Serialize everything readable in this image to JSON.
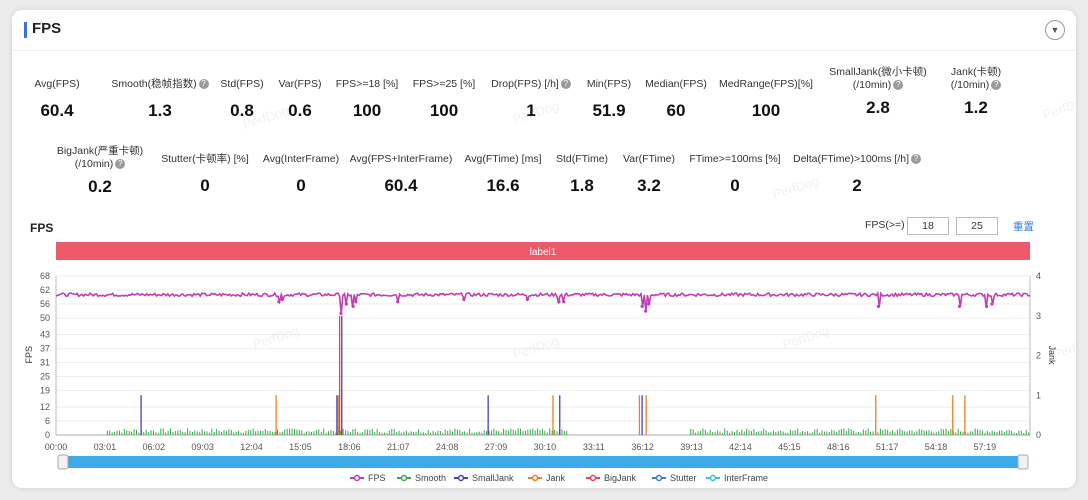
{
  "header": {
    "title": "FPS",
    "collapse_icon": "chevron-down-icon"
  },
  "metrics": [
    {
      "label": "Avg(FPS)",
      "value": "60.4",
      "help": false
    },
    {
      "label": "Smooth(稳帧指数)",
      "value": "1.3",
      "help": true
    },
    {
      "label": "Std(FPS)",
      "value": "0.8",
      "help": false
    },
    {
      "label": "Var(FPS)",
      "value": "0.6",
      "help": false
    },
    {
      "label": "FPS>=18 [%]",
      "value": "100",
      "help": false
    },
    {
      "label": "FPS>=25 [%]",
      "value": "100",
      "help": false
    },
    {
      "label": "Drop(FPS) [/h]",
      "value": "1",
      "help": true
    },
    {
      "label": "Min(FPS)",
      "value": "51.9",
      "help": false
    },
    {
      "label": "Median(FPS)",
      "value": "60",
      "help": false
    },
    {
      "label": "MedRange(FPS)[%]",
      "value": "100",
      "help": false
    },
    {
      "label": "SmallJank(微小卡顿)",
      "label2": "(/10min)",
      "value": "2.8",
      "help": true
    },
    {
      "label": "Jank(卡顿)",
      "label2": "(/10min)",
      "value": "1.2",
      "help": true
    },
    {
      "label": "BigJank(严重卡顿)",
      "label2": "(/10min)",
      "value": "0.2",
      "help": true
    },
    {
      "label": "Stutter(卡顿率) [%]",
      "value": "0",
      "help": false
    },
    {
      "label": "Avg(InterFrame)",
      "value": "0",
      "help": false
    },
    {
      "label": "Avg(FPS+InterFrame)",
      "value": "60.4",
      "help": false
    },
    {
      "label": "Avg(FTime) [ms]",
      "value": "16.6",
      "help": false
    },
    {
      "label": "Std(FTime)",
      "value": "1.8",
      "help": false
    },
    {
      "label": "Var(FTime)",
      "value": "3.2",
      "help": false
    },
    {
      "label": "FTime>=100ms [%]",
      "value": "0",
      "help": false
    },
    {
      "label": "Delta(FTime)>100ms [/h]",
      "value": "2",
      "help": true
    }
  ],
  "watermark_text": "PerfDog",
  "chart_section": {
    "title": "FPS",
    "threshold_label": "FPS(>=)",
    "threshold_1": "18",
    "threshold_2": "25",
    "reset_label": "重置"
  },
  "chart_data": {
    "type": "line",
    "label_band": "label1",
    "colors": {
      "FPS": "#c13cb5",
      "Smooth": "#3aa84a",
      "SmallJank": "#4b3fb8",
      "Jank": "#f07f22",
      "BigJank": "#e8425a",
      "Stutter": "#3d7ad8",
      "InterFrame": "#36c3cf",
      "label_band": "#ec5a6a",
      "scrollbar": "#3ea9e8"
    },
    "left_axis": {
      "label": "FPS",
      "range": [
        0,
        68
      ],
      "ticks": [
        0,
        6,
        12,
        19,
        25,
        31,
        37,
        43,
        50,
        56,
        62,
        68
      ]
    },
    "right_axis": {
      "label": "Jank",
      "range": [
        0,
        4
      ],
      "ticks": [
        0,
        1,
        2,
        3,
        4
      ]
    },
    "x_ticks": [
      "00:00",
      "03:01",
      "06:02",
      "09:03",
      "12:04",
      "15:05",
      "18:06",
      "21:07",
      "24:08",
      "27:09",
      "30:10",
      "33:11",
      "36:12",
      "39:13",
      "42:14",
      "45:15",
      "48:16",
      "51:17",
      "54:18",
      "57:19"
    ],
    "x_range_sec": [
      0,
      3606
    ],
    "fps_baseline": 60,
    "fps_dips": [
      {
        "t": 825,
        "fps": 57
      },
      {
        "t": 838,
        "fps": 58
      },
      {
        "t": 1055,
        "fps": 52
      },
      {
        "t": 1075,
        "fps": 56
      },
      {
        "t": 1100,
        "fps": 55
      },
      {
        "t": 1110,
        "fps": 57
      },
      {
        "t": 1745,
        "fps": 58
      },
      {
        "t": 1862,
        "fps": 57
      },
      {
        "t": 1880,
        "fps": 57
      },
      {
        "t": 2170,
        "fps": 55
      },
      {
        "t": 2183,
        "fps": 53
      },
      {
        "t": 2195,
        "fps": 56
      },
      {
        "t": 3045,
        "fps": 55
      },
      {
        "t": 3345,
        "fps": 55
      },
      {
        "t": 3445,
        "fps": 55
      },
      {
        "t": 3465,
        "fps": 56
      },
      {
        "t": 1265,
        "fps": 57
      },
      {
        "t": 1510,
        "fps": 58
      }
    ],
    "small_jank_spikes": [
      {
        "t": 315,
        "v": 1
      },
      {
        "t": 1040,
        "v": 1
      },
      {
        "t": 1058,
        "v": 3
      },
      {
        "t": 1600,
        "v": 1
      },
      {
        "t": 1865,
        "v": 1
      },
      {
        "t": 2170,
        "v": 1
      }
    ],
    "jank_spikes": [
      {
        "t": 815,
        "v": 1
      },
      {
        "t": 1045,
        "v": 1
      },
      {
        "t": 1840,
        "v": 1
      },
      {
        "t": 2160,
        "v": 1
      },
      {
        "t": 2185,
        "v": 1
      },
      {
        "t": 3035,
        "v": 1
      },
      {
        "t": 3320,
        "v": 1
      },
      {
        "t": 3365,
        "v": 1
      }
    ],
    "big_jank_spikes": [
      {
        "t": 1050,
        "v": 3
      }
    ],
    "smooth_segments": [
      [
        190,
        1900
      ],
      [
        2350,
        3606
      ]
    ],
    "legend": [
      "FPS",
      "Smooth",
      "SmallJank",
      "Jank",
      "BigJank",
      "Stutter",
      "InterFrame"
    ]
  }
}
